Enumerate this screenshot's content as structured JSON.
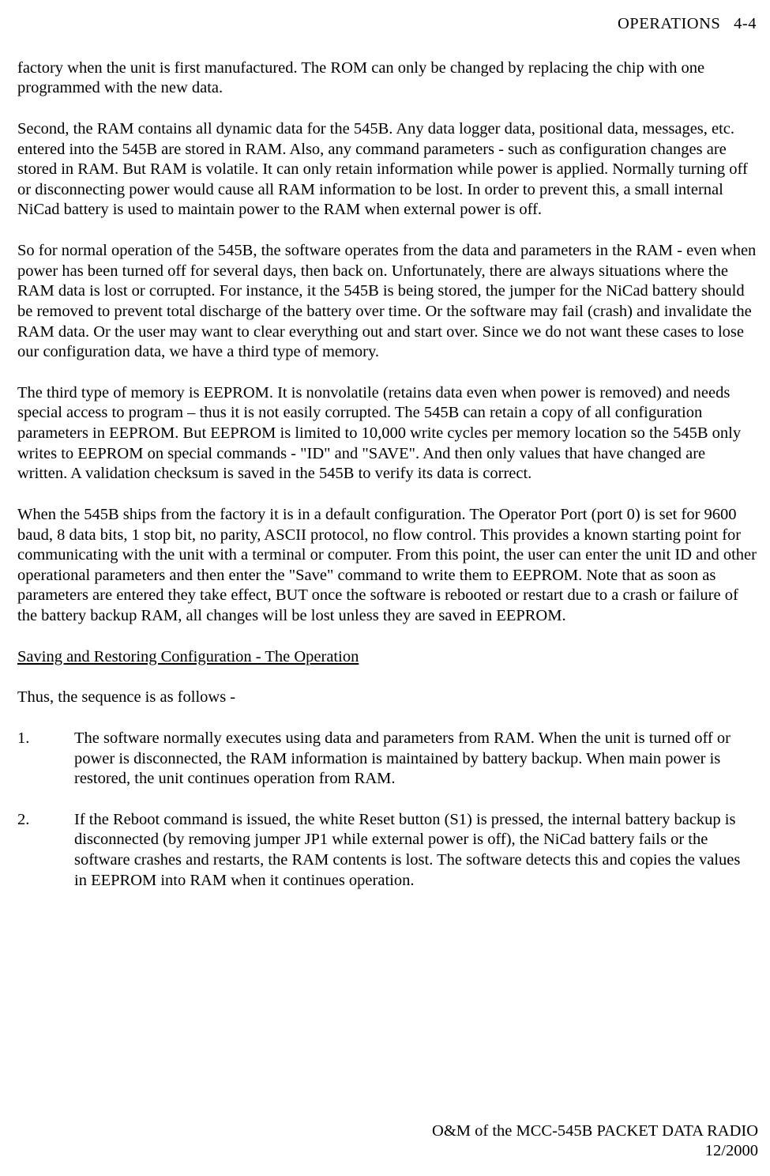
{
  "header": {
    "section": "OPERATIONS",
    "page": "4-4"
  },
  "paragraphs": {
    "p1": "factory when the unit is first manufactured. The ROM can only be changed by replacing the chip with one programmed with the new data.",
    "p2": "Second, the RAM contains all dynamic data for the 545B. Any data logger data, positional data, messages, etc. entered into the 545B are stored in RAM. Also, any command parameters - such as configuration changes are stored in RAM. But RAM is volatile. It can only retain information while power is applied. Normally turning off or disconnecting power would cause all RAM information to be lost. In order to prevent this, a small internal NiCad battery is used to maintain power to the RAM when external power is off.",
    "p3": "So for normal operation of the 545B, the software operates from the data and parameters in the RAM - even when power has been turned off for several days, then back on. Unfortunately, there are always situations where the RAM data is lost or corrupted. For instance, it the 545B is being stored, the jumper for the NiCad battery should be removed to prevent total discharge of the battery over time. Or the software may fail (crash) and invalidate the RAM data. Or the user may want to clear everything out and start over. Since we do not want these cases to lose our configuration data, we have a third type of memory.",
    "p4": "The third type of memory is EEPROM.  It is nonvolatile (retains data even when power is removed) and needs special access to program – thus it is not easily corrupted. The 545B can retain a copy of all configuration parameters in EEPROM. But EEPROM is limited to 10,000 write cycles per memory location so the 545B only writes to EEPROM on special commands - \"ID\" and \"SAVE\". And then only values that have changed are written. A validation checksum is saved in the 545B to verify its data is correct.",
    "p5": "When the 545B ships from the factory it is in a default configuration. The Operator Port (port 0) is set for 9600 baud, 8 data bits, 1 stop bit, no parity, ASCII protocol, no flow control. This provides a known starting point for communicating with the unit with a terminal or computer. From this point, the user can enter the unit ID and other operational parameters and then enter the \"Save\" command to write them to EEPROM. Note that as soon as parameters are entered they take effect, BUT once the software is rebooted or restart due to a crash or failure of the battery backup RAM, all changes will be lost unless they are saved in EEPROM."
  },
  "section_heading": "Saving and Restoring Configuration - The Operation",
  "sequence_intro": "Thus, the sequence is as follows -",
  "list": {
    "item1_num": "1.",
    "item1_text": "The software normally executes using data and parameters from RAM.  When the unit is turned off or power is disconnected, the RAM information is maintained by battery backup. When main power is restored, the unit continues operation from RAM.",
    "item2_num": "2.",
    "item2_text": "If the Reboot command is issued, the white Reset button (S1) is pressed, the internal battery backup is disconnected (by removing jumper JP1 while external power is off), the NiCad battery fails or the software crashes and restarts, the RAM contents is lost. The software detects this and copies the values in EEPROM into RAM when it continues operation."
  },
  "footer": {
    "line1": "O&M of the MCC-545B PACKET DATA RADIO",
    "line2": "12/2000"
  },
  "colors": {
    "background": "#ffffff",
    "text": "#000000"
  },
  "typography": {
    "font_family": "Times New Roman",
    "body_fontsize": 20.5,
    "line_height": 1.25
  }
}
